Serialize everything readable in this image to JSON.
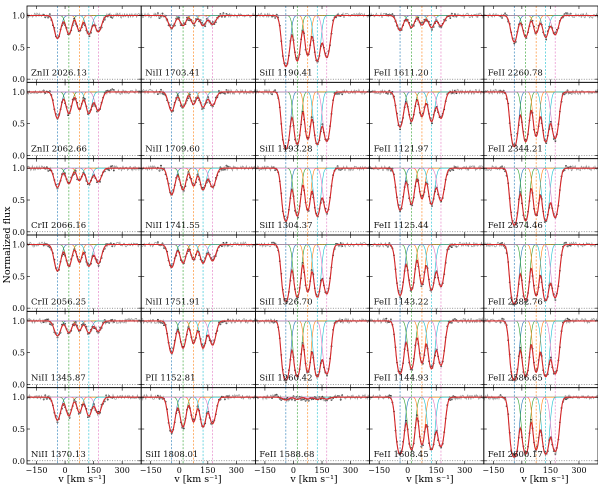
{
  "chart_data": {
    "type": "line",
    "title": "",
    "xlabel": "v [km s⁻¹]",
    "ylabel": "Normalized flux",
    "xlim": [
      -200,
      400
    ],
    "ylim": [
      -0.05,
      1.15
    ],
    "xticks": [
      -150,
      0,
      150,
      300
    ],
    "yticks": [
      0.0,
      0.5,
      1.0
    ],
    "xtick_labels": [
      "−150",
      "0",
      "150",
      "300"
    ],
    "ytick_labels": [
      "0.0",
      "0.5",
      "1.0"
    ],
    "components_v": [
      -40,
      20,
      75,
      125,
      175
    ],
    "component_colors": [
      "#1f77b4",
      "#2ca02c",
      "#ff7f0e",
      "#17becf",
      "#e377c2"
    ],
    "model_color": "#d62728",
    "data_color": "#9a9a9a",
    "grid": [
      [
        "ZnII 2026.13",
        "NiII 1703.41",
        "SiII 1190.41",
        "FeII 1611.20",
        "FeII 2260.78"
      ],
      [
        "ZnII 2062.66",
        "NiII 1709.60",
        "SiII 1193.28",
        "FeII 1121.97",
        "FeII 2344.21"
      ],
      [
        "CrII 2066.16",
        "NiII 1741.55",
        "SiII 1304.37",
        "FeII 1125.44",
        "FeII 2374.46"
      ],
      [
        "CrII 2056.25",
        "NiII 1751.91",
        "SiII 1526.70",
        "FeII 1143.22",
        "FeII 2382.76"
      ],
      [
        "NiII 1345.87",
        "PII 1152.81",
        "SiII 1260.42",
        "FeII 1144.93",
        "FeII 2586.65"
      ],
      [
        "NiII 1370.13",
        "SiII 1808.01",
        "FeII 1588.68",
        "FeII 1608.45",
        "FeII 2600.17"
      ]
    ],
    "depths": [
      [
        0.5,
        0.25,
        1.8,
        0.3,
        0.6
      ],
      [
        0.6,
        0.4,
        2.5,
        0.9,
        2.2
      ],
      [
        0.4,
        0.6,
        2.0,
        1.2,
        2.5
      ],
      [
        0.6,
        0.5,
        2.5,
        1.8,
        3.0
      ],
      [
        0.3,
        0.8,
        3.0,
        2.0,
        3.0
      ],
      [
        0.5,
        0.9,
        0.05,
        2.5,
        3.2
      ]
    ]
  }
}
